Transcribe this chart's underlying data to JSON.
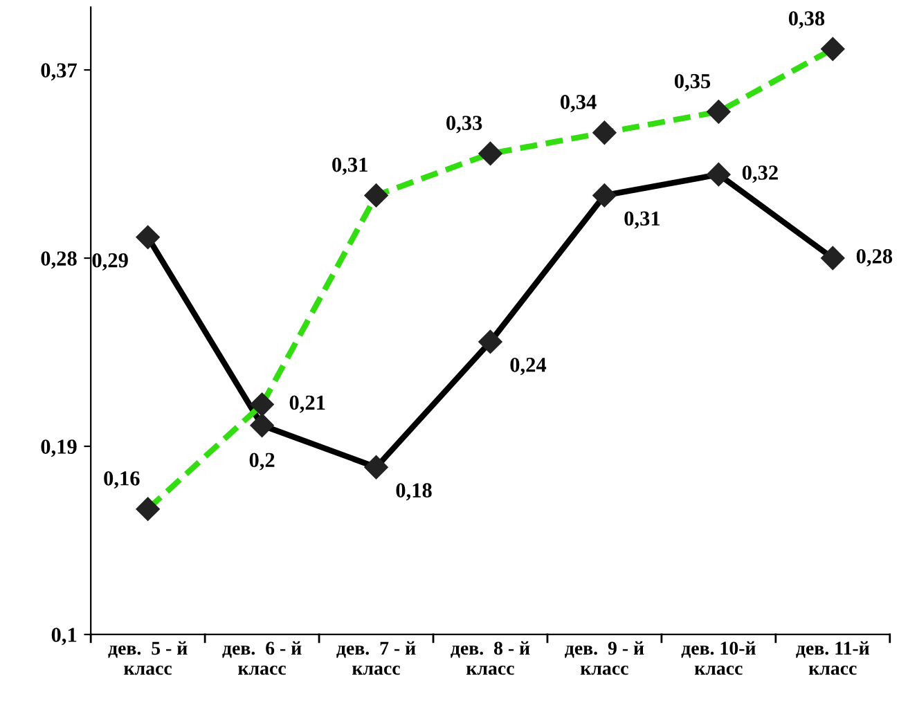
{
  "chart_data": {
    "type": "line",
    "categories": [
      "дев.  5 - й\nкласс",
      "дев.  6 - й\nкласс",
      "дев.  7 - й\nкласс",
      "дев.  8 - й\nкласс",
      "дев.  9 - й\nкласс",
      "дев. 10-й\nкласс",
      "дев. 11-й\nкласс"
    ],
    "series": [
      {
        "color": "#000000",
        "line_style": "solid",
        "values": [
          0.29,
          0.2,
          0.18,
          0.24,
          0.31,
          0.32,
          0.28
        ],
        "value_labels": [
          "0,29",
          "0,2",
          "0,18",
          "0,24",
          "0,31",
          "0,32",
          "0,28"
        ]
      },
      {
        "color": "#33dd11",
        "line_style": "dashed",
        "values": [
          0.16,
          0.21,
          0.31,
          0.33,
          0.34,
          0.35,
          0.38
        ],
        "value_labels": [
          "0,16",
          "0,21",
          "0,31",
          "0,33",
          "0,34",
          "0,35",
          "0,38"
        ]
      }
    ],
    "ylim": [
      0.1,
      0.4
    ],
    "yticks": [
      {
        "value": 0.1,
        "label": "0,1"
      },
      {
        "value": 0.19,
        "label": "0,19"
      },
      {
        "value": 0.28,
        "label": "0,28"
      },
      {
        "value": 0.37,
        "label": "0,37"
      }
    ],
    "marker": "diamond",
    "grid": false,
    "legend": false
  }
}
